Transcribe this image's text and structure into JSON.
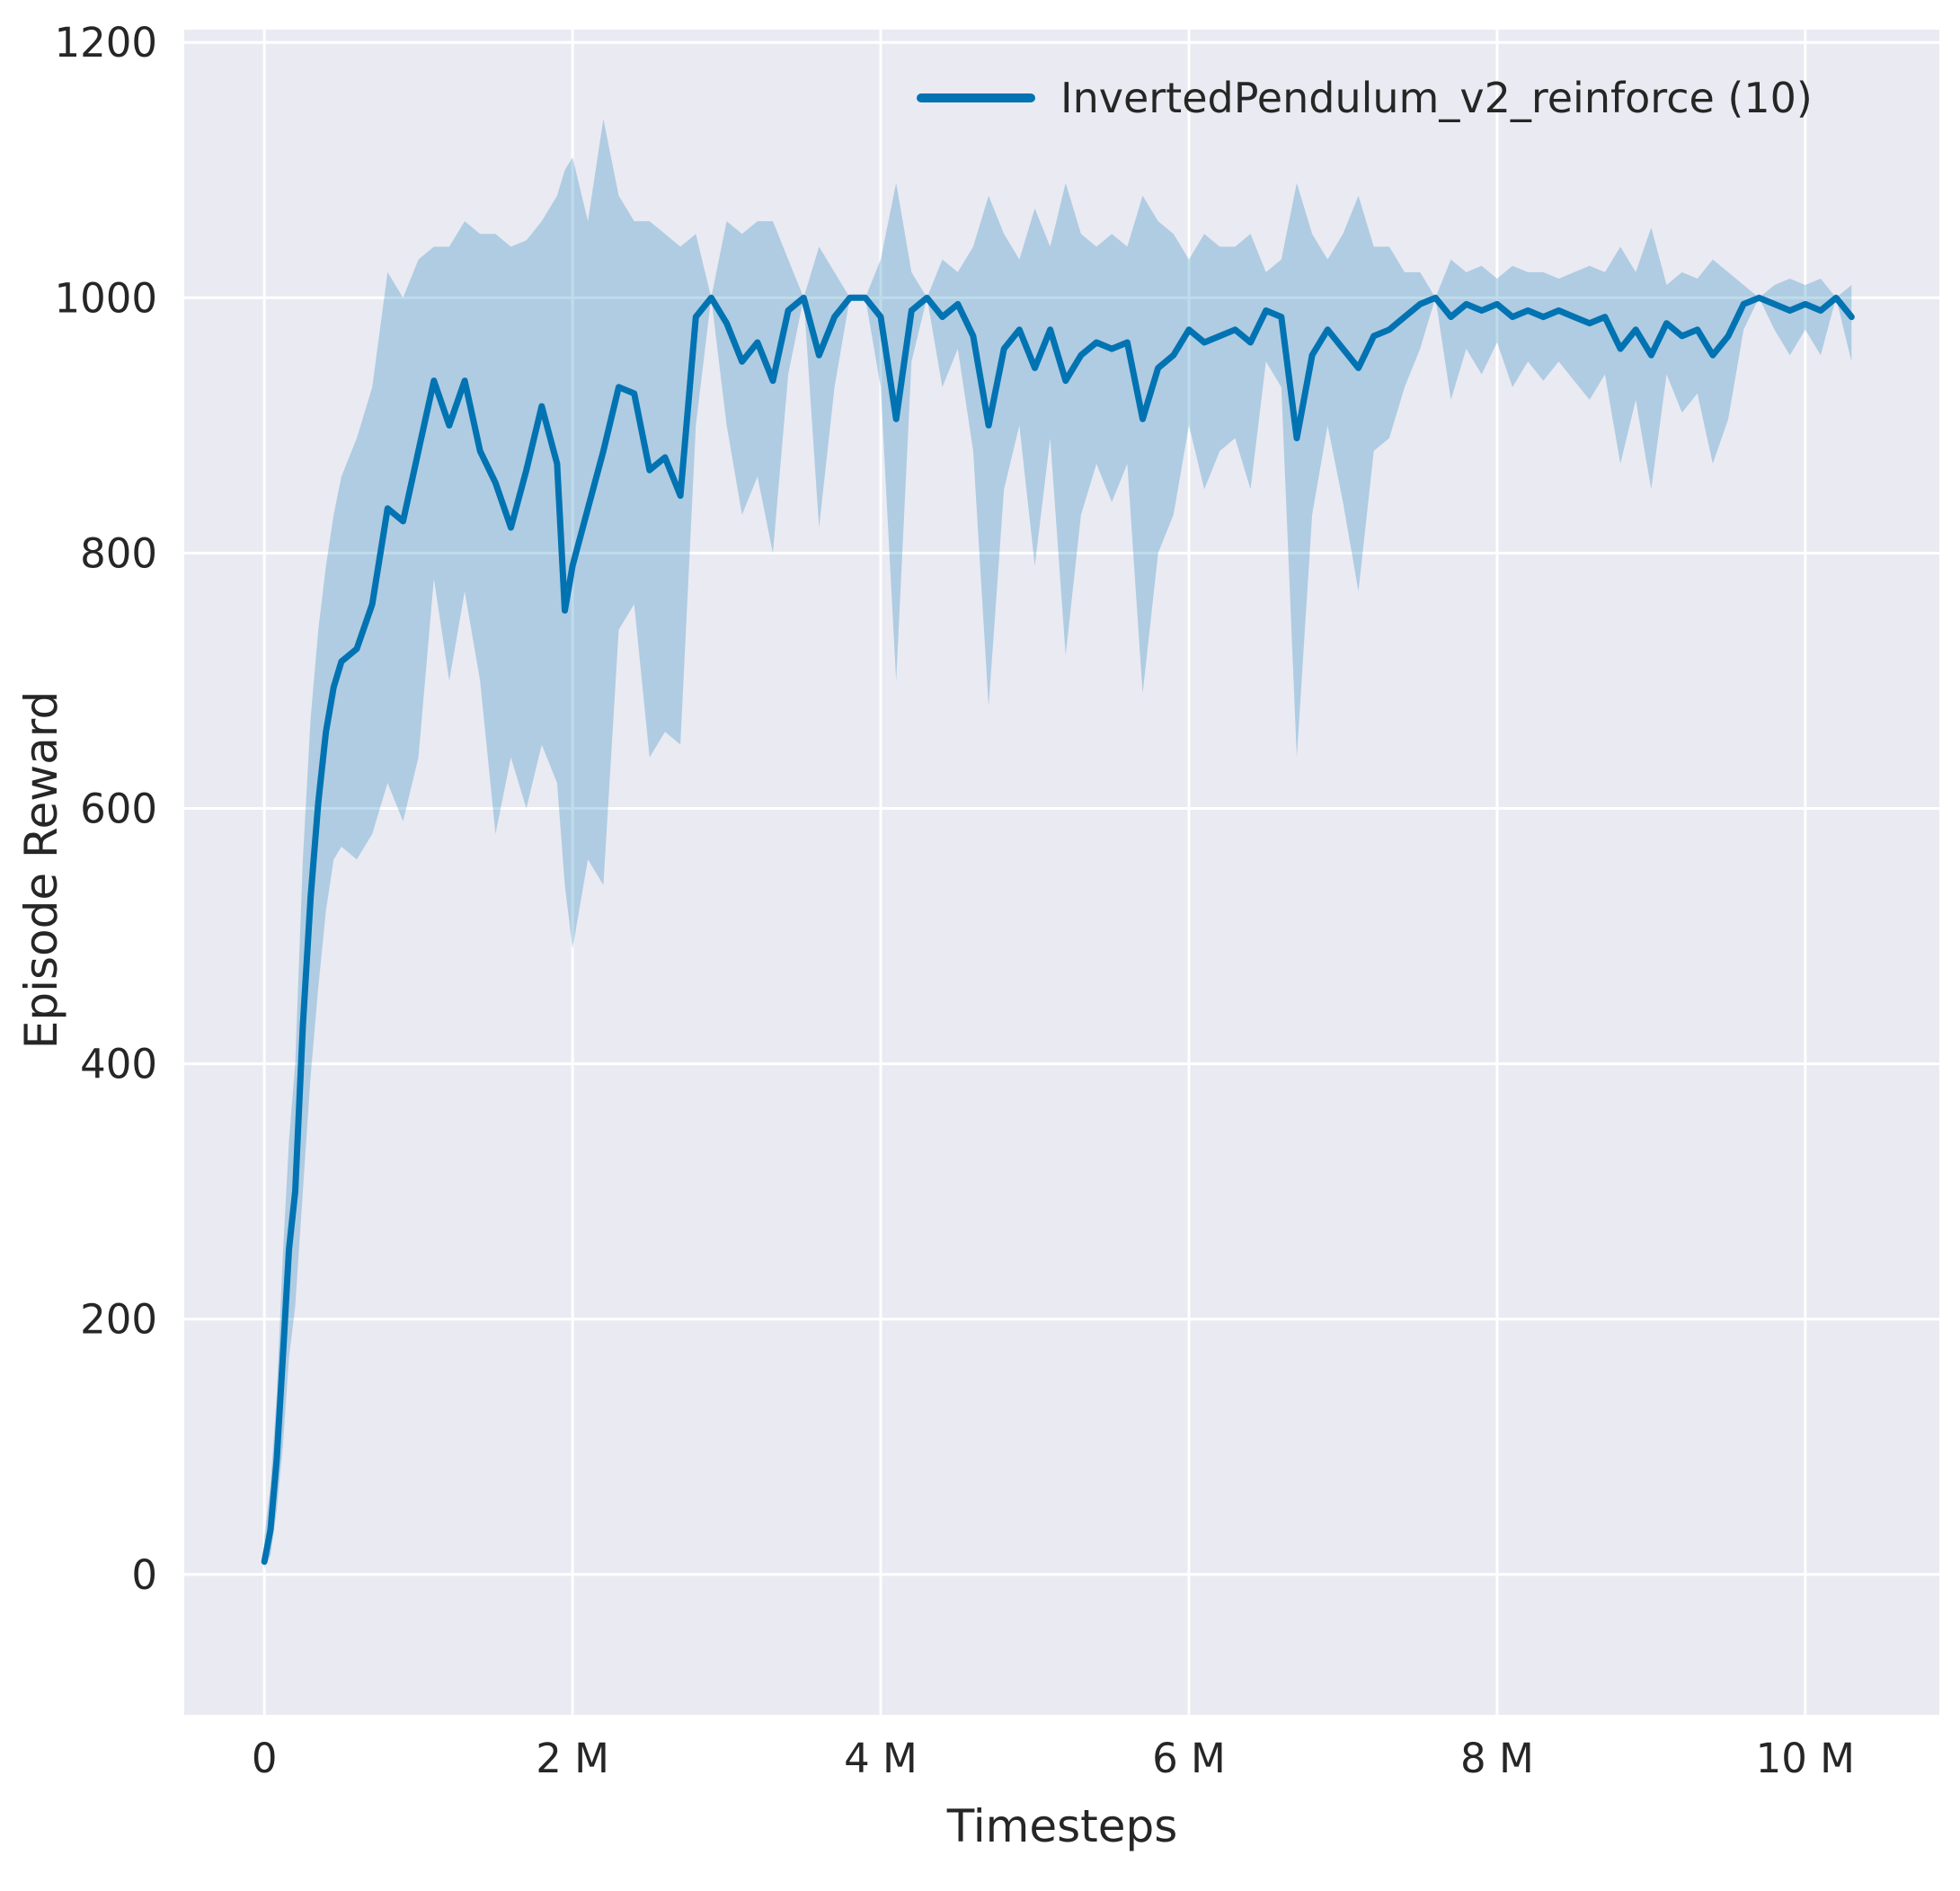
{
  "chart_data": {
    "type": "line",
    "title": "",
    "xlabel": "Timesteps",
    "ylabel": "Episode Reward",
    "x_unit": "millions",
    "xlim": [
      -0.52,
      10.87
    ],
    "ylim": [
      -110,
      1210
    ],
    "x_ticks": [
      0,
      2,
      4,
      6,
      8,
      10
    ],
    "x_tick_labels": [
      "0",
      "2 M",
      "4 M",
      "6 M",
      "8 M",
      "10 M"
    ],
    "y_ticks": [
      0,
      200,
      400,
      600,
      800,
      1000,
      1200
    ],
    "y_tick_labels": [
      "0",
      "200",
      "400",
      "600",
      "800",
      "1000",
      "1200"
    ],
    "grid": true,
    "legend_position": "upper right",
    "colors": {
      "plot_bg": "#eaeaf2",
      "grid": "#ffffff",
      "text": "#262626"
    },
    "series": [
      {
        "name": "InvertedPendulum_v2_reinforce (10)",
        "color": "#0173b2",
        "band_color": "rgba(1,115,178,0.25)",
        "x": [
          0,
          0.04,
          0.08,
          0.12,
          0.16,
          0.2,
          0.25,
          0.3,
          0.35,
          0.4,
          0.45,
          0.5,
          0.6,
          0.7,
          0.8,
          0.9,
          1.0,
          1.1,
          1.2,
          1.3,
          1.4,
          1.5,
          1.6,
          1.7,
          1.8,
          1.9,
          1.95,
          2.0,
          2.1,
          2.2,
          2.3,
          2.4,
          2.5,
          2.6,
          2.7,
          2.8,
          2.9,
          3.0,
          3.1,
          3.2,
          3.3,
          3.4,
          3.5,
          3.6,
          3.7,
          3.8,
          3.9,
          4.0,
          4.1,
          4.2,
          4.3,
          4.4,
          4.5,
          4.6,
          4.7,
          4.8,
          4.9,
          5.0,
          5.1,
          5.2,
          5.3,
          5.4,
          5.5,
          5.6,
          5.7,
          5.8,
          5.9,
          6.0,
          6.1,
          6.2,
          6.3,
          6.4,
          6.5,
          6.6,
          6.7,
          6.8,
          6.9,
          7.0,
          7.1,
          7.2,
          7.3,
          7.4,
          7.5,
          7.6,
          7.7,
          7.8,
          7.9,
          8.0,
          8.1,
          8.2,
          8.3,
          8.4,
          8.5,
          8.6,
          8.7,
          8.8,
          8.9,
          9.0,
          9.1,
          9.2,
          9.3,
          9.4,
          9.5,
          9.6,
          9.7,
          9.8,
          9.9,
          10.0,
          10.1,
          10.2,
          10.3
        ],
        "mean": [
          10,
          35,
          90,
          170,
          255,
          300,
          430,
          530,
          605,
          660,
          695,
          715,
          725,
          760,
          835,
          825,
          880,
          935,
          900,
          935,
          880,
          855,
          820,
          865,
          915,
          870,
          755,
          790,
          835,
          880,
          930,
          925,
          865,
          875,
          845,
          985,
          1000,
          980,
          950,
          965,
          935,
          990,
          1000,
          955,
          985,
          1000,
          1000,
          985,
          905,
          990,
          1000,
          985,
          995,
          970,
          900,
          960,
          975,
          945,
          975,
          935,
          955,
          965,
          960,
          965,
          905,
          945,
          955,
          975,
          965,
          970,
          975,
          965,
          990,
          985,
          890,
          955,
          975,
          960,
          945,
          970,
          975,
          985,
          995,
          1000,
          985,
          995,
          990,
          995,
          985,
          990,
          985,
          990,
          985,
          980,
          985,
          960,
          975,
          955,
          980,
          970,
          975,
          955,
          970,
          995,
          1000,
          995,
          990,
          995,
          990,
          1000,
          985
        ],
        "band_low": [
          5,
          15,
          50,
          100,
          170,
          210,
          300,
          390,
          460,
          520,
          560,
          570,
          560,
          580,
          620,
          590,
          640,
          780,
          700,
          770,
          700,
          580,
          640,
          600,
          650,
          620,
          540,
          490,
          560,
          540,
          740,
          760,
          640,
          660,
          650,
          900,
          1000,
          900,
          830,
          860,
          800,
          940,
          1000,
          820,
          930,
          1000,
          1000,
          930,
          700,
          950,
          1000,
          930,
          960,
          880,
          680,
          850,
          900,
          790,
          890,
          720,
          830,
          870,
          840,
          870,
          690,
          800,
          830,
          900,
          850,
          880,
          890,
          850,
          950,
          930,
          640,
          830,
          900,
          840,
          770,
          880,
          890,
          930,
          960,
          1000,
          920,
          960,
          940,
          965,
          930,
          950,
          935,
          950,
          935,
          920,
          940,
          870,
          920,
          850,
          940,
          910,
          925,
          870,
          905,
          975,
          1000,
          975,
          955,
          975,
          955,
          1000,
          950
        ],
        "band_high": [
          30,
          70,
          140,
          250,
          340,
          400,
          560,
          670,
          740,
          790,
          830,
          860,
          890,
          930,
          1020,
          1000,
          1030,
          1040,
          1040,
          1060,
          1050,
          1050,
          1040,
          1045,
          1060,
          1080,
          1100,
          1110,
          1060,
          1140,
          1080,
          1060,
          1060,
          1050,
          1040,
          1050,
          1000,
          1060,
          1050,
          1060,
          1060,
          1030,
          1000,
          1040,
          1020,
          1000,
          1000,
          1030,
          1090,
          1020,
          1000,
          1030,
          1020,
          1040,
          1080,
          1050,
          1030,
          1070,
          1040,
          1090,
          1050,
          1040,
          1050,
          1040,
          1080,
          1060,
          1050,
          1030,
          1050,
          1040,
          1040,
          1050,
          1020,
          1030,
          1090,
          1050,
          1030,
          1050,
          1080,
          1040,
          1040,
          1020,
          1020,
          1000,
          1030,
          1020,
          1025,
          1015,
          1025,
          1020,
          1020,
          1015,
          1020,
          1025,
          1020,
          1040,
          1020,
          1055,
          1010,
          1020,
          1015,
          1030,
          1020,
          1010,
          1000,
          1010,
          1015,
          1010,
          1015,
          1000,
          1010
        ]
      }
    ]
  }
}
